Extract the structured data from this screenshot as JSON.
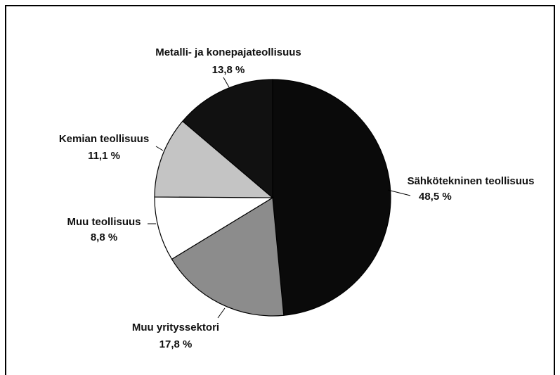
{
  "chart_data": {
    "type": "pie",
    "categories": [
      "Sähkötekninen teollisuus",
      "Muu yrityssektori",
      "Muu teollisuus",
      "Kemian teollisuus",
      "Metalli- ja konepajateollisuus"
    ],
    "values": [
      48.5,
      17.8,
      8.8,
      11.1,
      13.8
    ],
    "value_labels": [
      "48,5 %",
      "17,8 %",
      "8,8 %",
      "11,1 %",
      "13,8 %"
    ],
    "colors": [
      "#0a0a0a",
      "#8c8c8c",
      "#ffffff",
      "#c4c4c4",
      "#111111"
    ]
  }
}
